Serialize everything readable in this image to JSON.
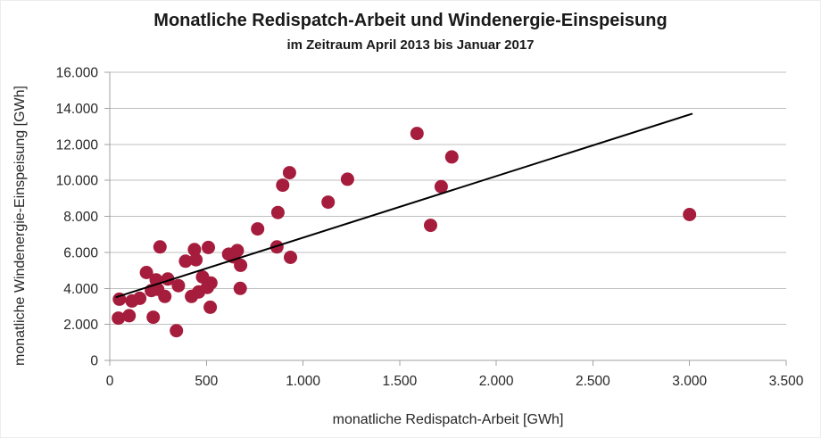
{
  "chart_data": {
    "type": "scatter",
    "title": "Monatliche Redispatch-Arbeit und Windenergie-Einspeisung",
    "subtitle": "im Zeitraum April 2013 bis Januar 2017",
    "xlabel": "monatliche Redispatch-Arbeit [GWh]",
    "ylabel": "monatliche Windenergie-Einspeisung [GWh]",
    "xlim": [
      0,
      3500
    ],
    "ylim": [
      0,
      16000
    ],
    "x_ticks": {
      "values": [
        0,
        500,
        1000,
        1500,
        2000,
        2500,
        3000,
        3500
      ],
      "labels": [
        "0",
        "500",
        "1.000",
        "1.500",
        "2.000",
        "2.500",
        "3.000",
        "3.500"
      ]
    },
    "y_ticks": {
      "values": [
        0,
        2000,
        4000,
        6000,
        8000,
        10000,
        12000,
        14000,
        16000
      ],
      "labels": [
        "0",
        "2.000",
        "4.000",
        "6.000",
        "8.000",
        "10.000",
        "12.000",
        "14.000",
        "16.000"
      ]
    },
    "grid": "horizontal-only",
    "legend": "none",
    "colors": {
      "point": "#a51c3c",
      "trendline": "#000000",
      "gridline": "#bfbfbf",
      "axis": "#a0a0a0",
      "text": "#262626"
    },
    "trendline": {
      "x_start": 30,
      "y_start": 3500,
      "x_end": 3015,
      "y_end": 13700
    },
    "points": [
      [
        45,
        2350
      ],
      [
        50,
        3400
      ],
      [
        100,
        2480
      ],
      [
        115,
        3300
      ],
      [
        155,
        3450
      ],
      [
        190,
        4880
      ],
      [
        215,
        3880
      ],
      [
        225,
        2400
      ],
      [
        240,
        4470
      ],
      [
        248,
        3950
      ],
      [
        260,
        6300
      ],
      [
        285,
        3550
      ],
      [
        300,
        4520
      ],
      [
        345,
        1650
      ],
      [
        355,
        4150
      ],
      [
        392,
        5510
      ],
      [
        423,
        3550
      ],
      [
        438,
        6150
      ],
      [
        446,
        5590
      ],
      [
        460,
        3800
      ],
      [
        480,
        4630
      ],
      [
        505,
        4050
      ],
      [
        510,
        6270
      ],
      [
        520,
        2950
      ],
      [
        523,
        4300
      ],
      [
        615,
        5900
      ],
      [
        640,
        5750
      ],
      [
        660,
        6100
      ],
      [
        675,
        4000
      ],
      [
        677,
        5280
      ],
      [
        765,
        7300
      ],
      [
        865,
        6300
      ],
      [
        870,
        8215
      ],
      [
        895,
        9730
      ],
      [
        930,
        10420
      ],
      [
        935,
        5720
      ],
      [
        1130,
        8790
      ],
      [
        1230,
        10060
      ],
      [
        1590,
        12600
      ],
      [
        1660,
        7500
      ],
      [
        1715,
        9650
      ],
      [
        1770,
        11300
      ],
      [
        3000,
        8100
      ]
    ]
  }
}
